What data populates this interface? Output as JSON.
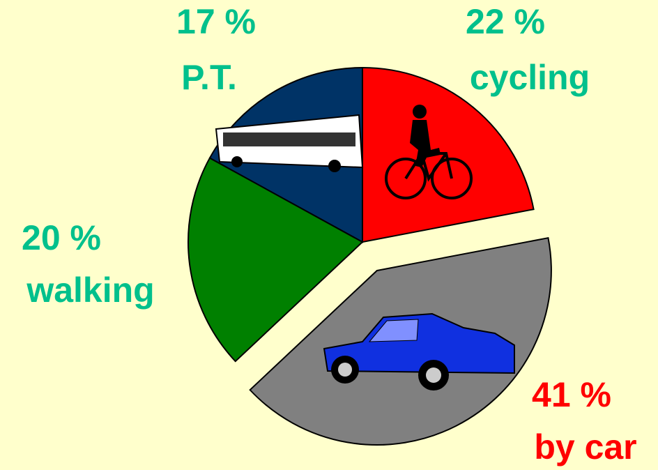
{
  "chart_data": {
    "type": "pie",
    "categories": [
      "cycling",
      "by car",
      "walking",
      "P.T."
    ],
    "values": [
      22,
      41,
      20,
      17
    ],
    "value_labels": [
      "22 %",
      "41 %",
      "20 %",
      "17 %"
    ],
    "colors": [
      "#ff0000",
      "#808080",
      "#008000",
      "#003366"
    ],
    "exploded": [
      false,
      true,
      false,
      false
    ]
  }
}
